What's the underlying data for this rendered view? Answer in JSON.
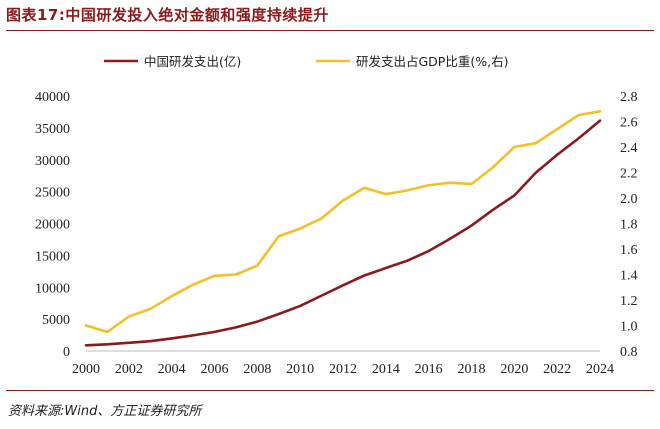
{
  "title": "图表17:中国研发投入绝对金额和强度持续提升",
  "source": "资料来源:Wind、方正证券研究所",
  "chart_data": {
    "type": "line",
    "x": [
      2000,
      2001,
      2002,
      2003,
      2004,
      2005,
      2006,
      2007,
      2008,
      2009,
      2010,
      2011,
      2012,
      2013,
      2014,
      2015,
      2016,
      2017,
      2018,
      2019,
      2020,
      2021,
      2022,
      2023,
      2024
    ],
    "x_ticks": [
      2000,
      2002,
      2004,
      2006,
      2008,
      2010,
      2012,
      2014,
      2016,
      2018,
      2020,
      2022,
      2024
    ],
    "series": [
      {
        "name": "中国研发支出(亿)",
        "axis": "left",
        "color": "#8b1a1a",
        "values": [
          896,
          1043,
          1288,
          1540,
          1966,
          2450,
          3003,
          3710,
          4616,
          5802,
          7063,
          8687,
          10298,
          11847,
          13016,
          14170,
          15677,
          17606,
          19678,
          22144,
          24393,
          27956,
          30783,
          33357,
          36130
        ]
      },
      {
        "name": "研发支出占GDP比重(%,右)",
        "axis": "right",
        "color": "#f2c02b",
        "values": [
          1.0,
          0.95,
          1.07,
          1.13,
          1.23,
          1.32,
          1.39,
          1.4,
          1.47,
          1.7,
          1.76,
          1.84,
          1.98,
          2.08,
          2.03,
          2.06,
          2.1,
          2.12,
          2.11,
          2.24,
          2.4,
          2.43,
          2.54,
          2.65,
          2.68
        ]
      }
    ],
    "y_left": {
      "min": 0,
      "max": 40000,
      "ticks": [
        0,
        5000,
        10000,
        15000,
        20000,
        25000,
        30000,
        35000,
        40000
      ]
    },
    "y_right": {
      "min": 0.8,
      "max": 2.8,
      "ticks": [
        "0.8",
        "1.0",
        "1.2",
        "1.4",
        "1.6",
        "1.8",
        "2.0",
        "2.2",
        "2.4",
        "2.6",
        "2.8"
      ]
    },
    "legend_position": "top-center",
    "grid": false
  }
}
